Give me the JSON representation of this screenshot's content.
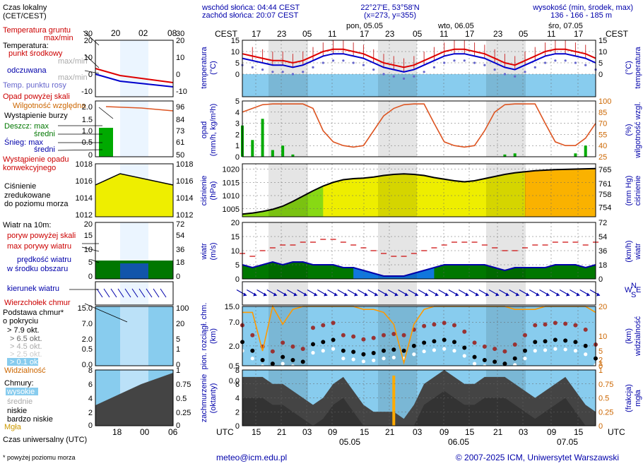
{
  "header": {
    "sunrise": "wschód słońca: 04:44 CEST",
    "sunset": "zachód słońca: 20:07 CEST",
    "coords": "22°27'E, 53°58'N",
    "grid": "(x=273, y=355)",
    "height_title": "wysokość (min, środek, max)",
    "height_values": "136 - 166 - 185 m",
    "tz_left": "CEST",
    "tz_right": "CEST",
    "utc_left": "UTC",
    "utc_right": "UTC"
  },
  "days_top": [
    "pon, 05.05",
    "wto, 06.05",
    "śro, 07.05"
  ],
  "hours_top": [
    "17",
    "23",
    "05",
    "11",
    "17",
    "23",
    "05",
    "11",
    "17",
    "23",
    "05",
    "11",
    "17"
  ],
  "hours_bottom": [
    "15",
    "21",
    "03",
    "09",
    "15",
    "21",
    "03",
    "09",
    "15",
    "21",
    "03",
    "09",
    "15"
  ],
  "days_bottom": [
    "05.05",
    "06.05",
    "07.05"
  ],
  "legend": {
    "local_time": "Czas lokalny",
    "local_time_sub": "(CET/CEST)",
    "local_ticks": [
      "20",
      "02",
      "08"
    ],
    "utc_label": "Czas uniwersalny (UTC)",
    "utc_ticks": [
      "18",
      "00",
      "06"
    ],
    "soil_temp": "Temperatura gruntu",
    "soil_sub": "max/min",
    "temperature": "Temperatura:",
    "mid_point": "punkt środkowy",
    "max_min": "max/min",
    "felt": "odczuwana",
    "max_min2": "max/min",
    "dew_point": "Temp. punktu rosy",
    "precip_above": "Opad powyżej skali",
    "humidity": "Wilgotność względna",
    "storm": "Wystąpienie burzy",
    "rain_max": "Deszcz: max",
    "rain_avg": "średni",
    "snow_max": "Śnieg: max",
    "snow_avg": "średni",
    "conv": "Wystąpienie opadu",
    "conv2": "konwekcyjnego",
    "pressure1": "Ciśnienie",
    "pressure2": "zredukowane",
    "pressure3": "do poziomu morza",
    "wind10": "Wiatr na 10m:",
    "gust_above": "poryw powyżej skali",
    "gust_max": "max porywy wiatru",
    "wind_speed": "prędkość wiatru",
    "wind_area": "w środku obszaru",
    "wind_dir": "kierunek wiatru",
    "cloud_top": "Wierzchołek chmur",
    "cloud_base": "Podstawa chmur*",
    "cloud_cover": "o pokryciu",
    "okt79": "> 7.9 okt.",
    "okt65": "> 6.5 okt.",
    "okt45": "> 4.5 okt.",
    "okt25": "> 2.5 okt.",
    "okt01": "> 0.1 okt.",
    "visibility": "Widzialność",
    "clouds": "Chmury:",
    "high": "wysokie",
    "medium": "średnie",
    "low": "niskie",
    "verylow": "bardzo niskie",
    "fog": "Mgła",
    "footnote": "* powyżej poziomu morza"
  },
  "axis_labels": {
    "temp_l1": "temperatura",
    "temp_l2": "(°C)",
    "temp_r1": "(°C)",
    "temp_r2": "temperatura",
    "prec_l1": "opad",
    "prec_l2": "(mm/h, kg/m²h)",
    "prec_r1": "(%)",
    "prec_r2": "wilgotność wzgl.",
    "pres_l1": "ciśnienie",
    "pres_l2": "(hPa)",
    "pres_r1": "(mm Hg)",
    "pres_r2": "ciśnienie",
    "wind_l1": "wiatr",
    "wind_l2": "(m/s)",
    "wind_r1": "(km/h)",
    "wind_r2": "wiatr",
    "cb_l1": "pion. rozciągł. chm.",
    "cb_l2": "(km)",
    "cb_r1": "(km)",
    "cb_r2": "widzialność",
    "cl_l1": "zachmurzenie",
    "cl_l2": "(oktanty)",
    "cl_r1": "(frakcja)",
    "cl_r2": "mgła",
    "compass_n": "N",
    "compass_w": "W",
    "compass_s": "S",
    "compass_e": "E"
  },
  "footer": {
    "email": "meteo@icm.edu.pl",
    "copyright": "© 2007-2025 ICM, Uniwersytet Warszawski"
  },
  "colors": {
    "sky": "#88ccee",
    "night": "#dddddd",
    "pressure": "#eeee00",
    "temp": "#dd0000",
    "felt": "#0000cc",
    "humidity": "#dd5522",
    "rain": "#00aa00",
    "wind": "#007700",
    "vis": "#ff9900"
  },
  "chart_data": [
    {
      "type": "line",
      "title": "temperatura (°C)",
      "ylim": [
        -10,
        15
      ],
      "yticks": [
        0,
        5,
        10,
        15
      ],
      "series": [
        {
          "name": "punkt środkowy",
          "values": [
            9,
            8,
            7,
            6,
            6,
            5,
            6,
            8,
            10,
            11,
            11,
            10,
            9,
            7,
            5,
            4,
            3,
            4,
            6,
            8,
            10,
            11,
            11,
            10,
            9,
            7,
            5,
            4,
            6,
            8,
            10,
            11,
            11,
            10,
            9,
            7
          ]
        },
        {
          "name": "odczuwana",
          "values": [
            7,
            6,
            5,
            4,
            4,
            3,
            4,
            6,
            8,
            9,
            9,
            8,
            7,
            5,
            3,
            2,
            1,
            2,
            4,
            6,
            8,
            9,
            9,
            8,
            7,
            5,
            3,
            2,
            4,
            6,
            8,
            9,
            9,
            8,
            7,
            5
          ]
        }
      ]
    },
    {
      "type": "bar",
      "title": "opad (mm/h, kg/m²h) / wilgotność wzgl. (%)",
      "ylim": [
        0,
        5
      ],
      "humidity_ylim": [
        25,
        100
      ],
      "series": [
        {
          "name": "opad",
          "values": [
            2.8,
            1.5,
            3.4,
            0.6,
            1.0,
            0.2,
            0,
            0,
            0,
            0,
            0,
            0,
            0,
            0,
            0,
            0,
            0,
            0,
            0,
            0,
            0,
            0,
            0,
            0,
            0,
            0,
            0.2,
            0.3,
            0,
            0,
            0,
            0,
            0,
            0.3,
            1.0,
            0
          ]
        },
        {
          "name": "wilgotność",
          "values": [
            85,
            90,
            95,
            96,
            96,
            96,
            96,
            90,
            60,
            45,
            40,
            38,
            40,
            60,
            80,
            90,
            95,
            96,
            96,
            70,
            45,
            40,
            38,
            40,
            60,
            85,
            95,
            96,
            96,
            96,
            70,
            45,
            40,
            40,
            50,
            70
          ]
        }
      ]
    },
    {
      "type": "area",
      "title": "ciśnienie (hPa)",
      "ylim": [
        1002,
        1022
      ],
      "yticks": [
        1005,
        1010,
        1015,
        1020
      ],
      "values": [
        1003.0,
        1003.4,
        1004.0,
        1004.8,
        1006.0,
        1007.8,
        1009.8,
        1011.8,
        1013.6,
        1015.0,
        1016.0,
        1016.4,
        1016.6,
        1017.0,
        1017.6,
        1018.0,
        1018.2,
        1018.0,
        1017.6,
        1016.8,
        1016.2,
        1015.6,
        1015.2,
        1015.6,
        1016.4,
        1017.2,
        1018.0,
        1018.6,
        1019.0,
        1019.4,
        1019.6,
        1019.8,
        1019.9,
        1020.0,
        1020.1,
        1020.2
      ]
    },
    {
      "type": "line",
      "title": "wiatr (m/s)",
      "ylim": [
        0,
        20
      ],
      "yticks": [
        0,
        5,
        10,
        15,
        20
      ],
      "series": [
        {
          "name": "porywy",
          "values": [
            9,
            8,
            10,
            11,
            12,
            12,
            13,
            13,
            14,
            14,
            13,
            12,
            11,
            10,
            9,
            8,
            8,
            9,
            10,
            11,
            12,
            13,
            13,
            13,
            12,
            11,
            10,
            10,
            11,
            12,
            12,
            13,
            13,
            13,
            12,
            13
          ]
        },
        {
          "name": "prędkość",
          "values": [
            5,
            4,
            5,
            6,
            5,
            6,
            6,
            5,
            5,
            5,
            4,
            4,
            3,
            2,
            1,
            1,
            1,
            2,
            3,
            4,
            5,
            5,
            5,
            5,
            5,
            4,
            3,
            4,
            4,
            4,
            4,
            5,
            5,
            5,
            4,
            5
          ]
        }
      ]
    },
    {
      "type": "scatter",
      "title": "pion. rozciągł. chm. (km) / widzialność (km)",
      "ylim": [
        0,
        15
      ],
      "values": [
        2.5,
        1.5,
        0.8,
        0.6,
        1.0,
        0.8,
        0.7,
        2.2,
        2.5,
        2.8,
        1.5,
        1.4,
        1.2,
        1.3,
        1.5,
        1.6,
        1.5,
        2.0,
        2.4,
        2.6,
        2.8,
        2.5,
        1.8,
        1.0,
        0.8,
        0.7,
        0.6,
        0.9,
        1.5,
        2.5,
        2.6,
        2.8,
        2.7,
        2.5,
        2.0,
        0.9
      ],
      "visibility": [
        18,
        18,
        5,
        20,
        14,
        19,
        20,
        20,
        20,
        20,
        20,
        20,
        19,
        19,
        18,
        14,
        1,
        14,
        19,
        20,
        20,
        20,
        20,
        20,
        20,
        20,
        20,
        19,
        19,
        19,
        20,
        20,
        20,
        20,
        20,
        18
      ]
    },
    {
      "type": "area",
      "title": "zachmurzenie (oktanty) / mgła (frakcja)",
      "ylim": [
        0,
        8
      ],
      "yticks": [
        0,
        2,
        4,
        6,
        8
      ],
      "values": [
        7,
        7,
        7,
        6,
        6,
        5,
        4,
        3,
        4,
        6,
        7,
        5,
        3,
        2,
        2,
        2,
        1,
        3,
        6,
        7,
        8,
        7,
        6,
        6,
        7,
        7,
        7,
        6,
        5,
        4,
        5,
        6,
        7,
        5,
        3,
        2
      ],
      "fog": [
        0,
        0,
        0,
        0,
        0,
        0,
        0,
        0,
        0,
        0,
        0,
        0,
        0,
        0,
        0,
        0.9,
        0,
        0,
        0,
        0,
        0,
        0,
        0,
        0,
        0,
        0,
        0,
        0,
        0,
        0,
        0,
        0,
        0,
        0,
        0,
        0
      ]
    }
  ]
}
